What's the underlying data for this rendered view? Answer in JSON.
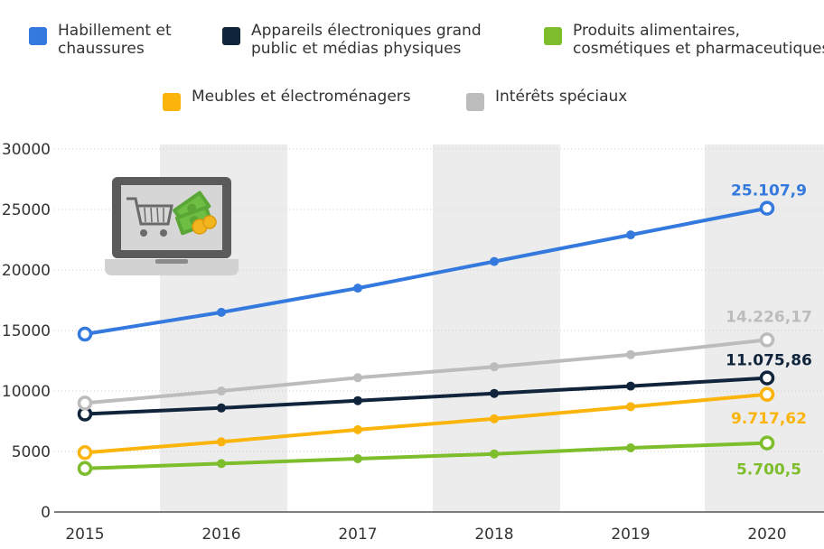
{
  "chart_data": {
    "type": "line",
    "x": [
      "2015",
      "2016",
      "2017",
      "2018",
      "2019",
      "2020"
    ],
    "ylim": [
      0,
      30000
    ],
    "yticks": [
      "30000",
      "25000",
      "20000",
      "15000",
      "10000",
      "5000",
      "0"
    ],
    "ytick_values": [
      30000,
      25000,
      20000,
      15000,
      10000,
      5000,
      0
    ],
    "legend_position": "top",
    "grid": true,
    "series": [
      {
        "name": "Habillement et chaussures",
        "color": "#3479dd",
        "values": [
          14700,
          16500,
          18500,
          20700,
          22900,
          25107.9
        ],
        "end_label": "25.107,9"
      },
      {
        "name": "Appareils électroniques grand public et médias physiques",
        "color": "#10253c",
        "values": [
          8100,
          8600,
          9200,
          9800,
          10400,
          11075.86
        ],
        "end_label": "11.075,86"
      },
      {
        "name": "Produits alimentaires, cosmétiques et pharmaceutiques",
        "color": "#7ebd2c",
        "values": [
          3600,
          4000,
          4400,
          4800,
          5300,
          5700.5
        ],
        "end_label": "5.700,5"
      },
      {
        "name": "Meubles et électroménagers",
        "color": "#fbb40b",
        "values": [
          4900,
          5800,
          6800,
          7700,
          8700,
          9717.62
        ],
        "end_label": "9.717,62"
      },
      {
        "name": "Intérêts spéciaux",
        "color": "#bcbcbc",
        "values": [
          9000,
          10000,
          11100,
          12000,
          13000,
          14226.17
        ],
        "end_label": "14.226,17"
      }
    ]
  },
  "legend": {
    "items": [
      {
        "line1": "Habillement et",
        "line2": "chaussures",
        "color": "#3479dd"
      },
      {
        "line1": "Appareils électroniques grand",
        "line2": "public et médias physiques",
        "color": "#10253c"
      },
      {
        "line1": "Produits alimentaires,",
        "line2": "cosmétiques et pharmaceutiques",
        "color": "#7ebd2c"
      },
      {
        "line1": "Meubles et électroménagers",
        "line2": "",
        "color": "#fbb40b"
      },
      {
        "line1": "Intérêts spéciaux",
        "line2": "",
        "color": "#bcbcbc"
      }
    ]
  },
  "colors": {
    "band": "#ececec",
    "axis": "#555555",
    "laptop_frame": "#5b5b5b",
    "laptop_screen": "#d6d6d6",
    "cart": "#6a6a6a",
    "money": "#6fbe44",
    "coin": "#f3b51d"
  },
  "icons": [
    "laptop-shopping-icon"
  ]
}
